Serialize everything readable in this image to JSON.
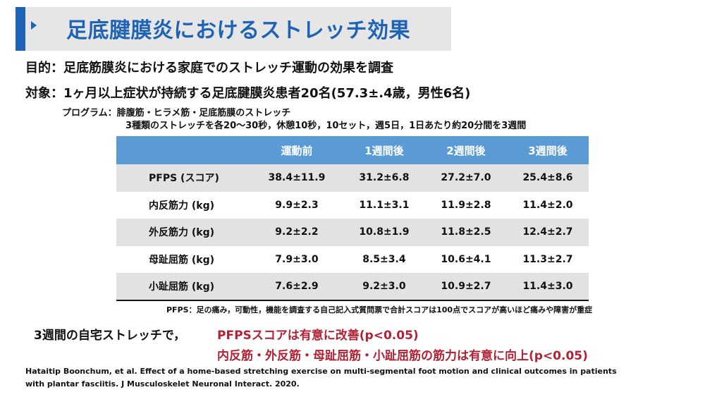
{
  "title": "足底腱膜炎におけるストレッチ効果",
  "purpose": "目的：足底筋膜炎における家庭でのストレッチ運動の効果を調査",
  "subject": "対象：1ヶ月以上症状が持続する足底腱膜炎患者20名(57.3±.4歳，男性6名)",
  "program": {
    "line1": "プログラム：腓腹筋・ヒラメ筋・足底筋膜のストレッチ",
    "line2": "3種類のストレッチを各20〜30秒，休憩10秒，10セット，週5日，1日あたり約20分間を3週間"
  },
  "table": {
    "headers": [
      "",
      "運動前",
      "1週間後",
      "2週間後",
      "3週間後"
    ],
    "rows": [
      {
        "label": "PFPS (スコア)",
        "values": [
          "38.4±11.9",
          "31.2±6.8",
          "27.2±7.0",
          "25.4±8.6"
        ]
      },
      {
        "label": "内反筋力 (kg)",
        "values": [
          "9.9±2.3",
          "11.1±3.1",
          "11.9±2.8",
          "11.4±2.0"
        ]
      },
      {
        "label": "外反筋力 (kg)",
        "values": [
          "9.2±2.2",
          "10.8±1.9",
          "11.8±2.5",
          "12.4±2.7"
        ]
      },
      {
        "label": "母趾屈筋 (kg)",
        "values": [
          "7.9±3.0",
          "8.5±3.4",
          "10.6±4.1",
          "11.3±2.7"
        ]
      },
      {
        "label": "小趾屈筋 (kg)",
        "values": [
          "7.6±2.9",
          "9.2±3.0",
          "10.9±2.7",
          "11.4±3.0"
        ]
      }
    ]
  },
  "footnote": "PFPS：足の痛み，可動性，機能を調査する自己記入式質問票で合計スコアは100点でスコアが高いほど痛みや障害が重症",
  "conclusion": {
    "lead": "3週間の自宅ストレッチで，",
    "red1": "PFPSスコアは有意に改善(p<0.05)",
    "red2": "内反筋・外反筋・母趾屈筋・小趾屈筋の筋力は有意に向上(p<0.05)"
  },
  "citation": {
    "line1": "Hataitip Boonchum, et al. Effect of a home-based stretching exercise on multi-segmental foot motion and clinical outcomes in patients",
    "line2": "with plantar fasciitis. J Musculoskelet Neuronal Interact. 2020."
  },
  "colors": {
    "accent_blue": "#1e63b5",
    "header_blue": "#5b9bd5",
    "emphasis_red": "#b22235"
  }
}
